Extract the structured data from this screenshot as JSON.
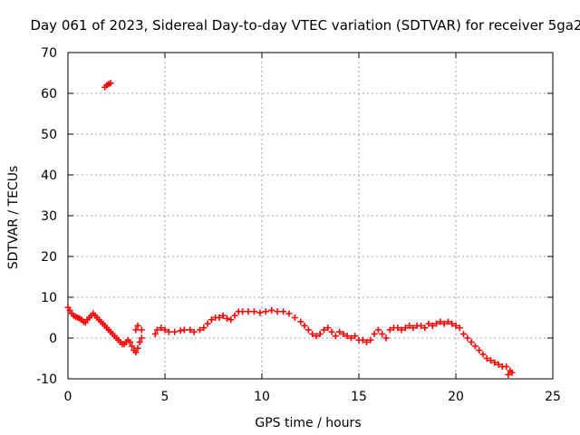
{
  "chart_data": {
    "type": "scatter",
    "title": "Day 061 of 2023, Sidereal Day-to-day VTEC variation (SDTVAR) for receiver 5ga2",
    "xlabel": "GPS time / hours",
    "ylabel": "SDTVAR / TECUs",
    "xlim": [
      0,
      25
    ],
    "ylim": [
      -10,
      70
    ],
    "xticks": [
      0,
      5,
      10,
      15,
      20,
      25
    ],
    "yticks": [
      -10,
      0,
      10,
      20,
      30,
      40,
      50,
      60,
      70
    ],
    "grid": true,
    "marker": "+",
    "color": "#ff0000",
    "series": [
      {
        "name": "SDTVAR",
        "points": [
          [
            0.0,
            7.5
          ],
          [
            0.1,
            6.8
          ],
          [
            0.2,
            6.0
          ],
          [
            0.3,
            5.5
          ],
          [
            0.4,
            5.2
          ],
          [
            0.5,
            5.0
          ],
          [
            0.6,
            4.8
          ],
          [
            0.7,
            4.5
          ],
          [
            0.8,
            4.0
          ],
          [
            0.9,
            3.8
          ],
          [
            1.0,
            4.5
          ],
          [
            1.1,
            5.0
          ],
          [
            1.2,
            5.5
          ],
          [
            1.3,
            6.0
          ],
          [
            1.4,
            5.5
          ],
          [
            1.5,
            5.0
          ],
          [
            1.6,
            4.5
          ],
          [
            1.7,
            4.0
          ],
          [
            1.8,
            3.5
          ],
          [
            1.9,
            3.0
          ],
          [
            2.0,
            2.5
          ],
          [
            2.1,
            2.0
          ],
          [
            2.2,
            1.5
          ],
          [
            2.3,
            1.0
          ],
          [
            2.4,
            0.5
          ],
          [
            2.5,
            0.0
          ],
          [
            2.6,
            -0.5
          ],
          [
            2.7,
            -1.0
          ],
          [
            2.8,
            -1.5
          ],
          [
            2.9,
            -1.5
          ],
          [
            3.0,
            -1.0
          ],
          [
            3.1,
            -0.5
          ],
          [
            3.2,
            -1.0
          ],
          [
            3.3,
            -2.0
          ],
          [
            3.4,
            -3.0
          ],
          [
            3.5,
            -3.5
          ],
          [
            3.6,
            -2.5
          ],
          [
            3.7,
            -1.0
          ],
          [
            3.8,
            0.0
          ],
          [
            3.5,
            2.0
          ],
          [
            3.6,
            3.0
          ],
          [
            3.8,
            2.0
          ],
          [
            4.5,
            1.0
          ],
          [
            4.6,
            2.0
          ],
          [
            4.8,
            2.5
          ],
          [
            5.0,
            2.0
          ],
          [
            5.2,
            1.5
          ],
          [
            5.5,
            1.5
          ],
          [
            5.8,
            1.8
          ],
          [
            6.0,
            2.0
          ],
          [
            6.3,
            2.0
          ],
          [
            6.5,
            1.5
          ],
          [
            6.8,
            2.0
          ],
          [
            7.0,
            2.5
          ],
          [
            7.2,
            3.5
          ],
          [
            7.4,
            4.5
          ],
          [
            7.6,
            5.0
          ],
          [
            7.8,
            5.0
          ],
          [
            8.0,
            5.5
          ],
          [
            8.2,
            4.8
          ],
          [
            8.4,
            4.5
          ],
          [
            8.6,
            5.5
          ],
          [
            8.8,
            6.5
          ],
          [
            9.0,
            6.5
          ],
          [
            9.3,
            6.5
          ],
          [
            9.6,
            6.5
          ],
          [
            9.9,
            6.2
          ],
          [
            10.2,
            6.5
          ],
          [
            10.5,
            6.8
          ],
          [
            10.8,
            6.5
          ],
          [
            11.1,
            6.5
          ],
          [
            11.4,
            6.0
          ],
          [
            11.7,
            5.0
          ],
          [
            12.0,
            4.0
          ],
          [
            12.2,
            3.0
          ],
          [
            12.4,
            2.0
          ],
          [
            12.6,
            1.0
          ],
          [
            12.8,
            0.5
          ],
          [
            13.0,
            1.0
          ],
          [
            13.2,
            2.0
          ],
          [
            13.4,
            2.5
          ],
          [
            13.6,
            1.5
          ],
          [
            13.8,
            0.5
          ],
          [
            14.0,
            1.5
          ],
          [
            14.2,
            1.0
          ],
          [
            14.4,
            0.5
          ],
          [
            14.6,
            0.0
          ],
          [
            14.8,
            0.5
          ],
          [
            15.0,
            -0.5
          ],
          [
            15.2,
            -0.5
          ],
          [
            15.4,
            -1.0
          ],
          [
            15.6,
            -0.5
          ],
          [
            15.8,
            1.0
          ],
          [
            16.0,
            2.0
          ],
          [
            16.2,
            1.0
          ],
          [
            16.4,
            0.0
          ],
          [
            16.6,
            2.0
          ],
          [
            16.8,
            2.5
          ],
          [
            17.0,
            2.5
          ],
          [
            17.2,
            2.0
          ],
          [
            17.4,
            2.5
          ],
          [
            17.6,
            3.0
          ],
          [
            17.8,
            2.5
          ],
          [
            18.0,
            3.0
          ],
          [
            18.2,
            3.0
          ],
          [
            18.4,
            2.5
          ],
          [
            18.6,
            3.5
          ],
          [
            18.8,
            3.0
          ],
          [
            19.0,
            3.5
          ],
          [
            19.2,
            4.0
          ],
          [
            19.4,
            3.5
          ],
          [
            19.6,
            4.0
          ],
          [
            19.8,
            3.5
          ],
          [
            20.0,
            3.0
          ],
          [
            20.2,
            2.5
          ],
          [
            20.4,
            1.0
          ],
          [
            20.6,
            0.0
          ],
          [
            20.8,
            -1.0
          ],
          [
            21.0,
            -2.0
          ],
          [
            21.2,
            -3.0
          ],
          [
            21.4,
            -4.0
          ],
          [
            21.6,
            -5.0
          ],
          [
            21.8,
            -5.5
          ],
          [
            22.0,
            -6.0
          ],
          [
            22.2,
            -6.5
          ],
          [
            22.4,
            -7.0
          ],
          [
            22.6,
            -7.0
          ],
          [
            22.8,
            -8.0
          ],
          [
            22.9,
            -8.5
          ],
          [
            22.7,
            -9.0
          ],
          [
            1.9,
            61.5
          ],
          [
            2.0,
            62.0
          ],
          [
            2.1,
            62.3
          ],
          [
            2.2,
            62.5
          ]
        ]
      }
    ]
  }
}
